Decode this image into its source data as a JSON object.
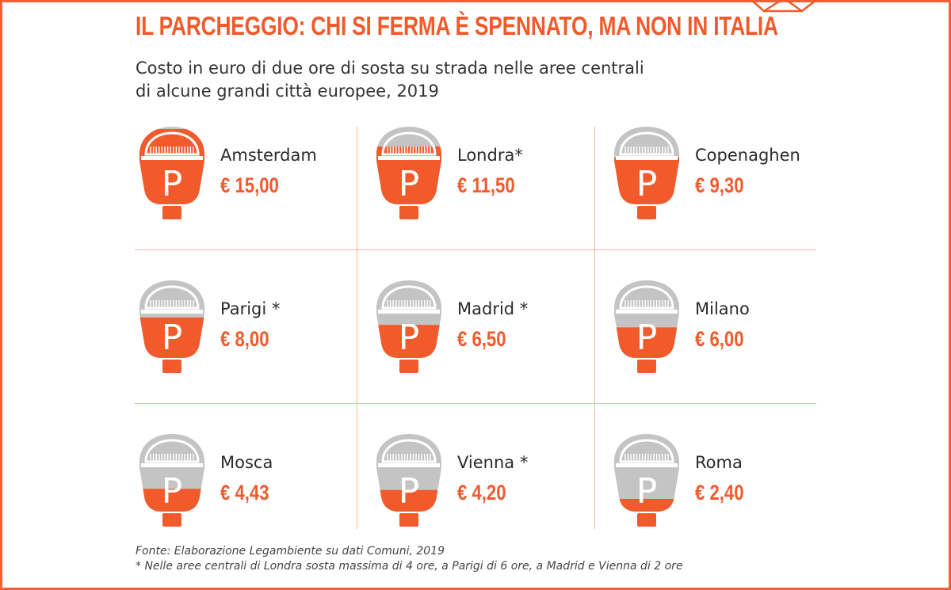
{
  "header": {
    "title": "Il parcheggio: chi si ferma è spennato, ma non in Italia",
    "subtitle_line1": "Costo in euro di due ore di sosta su strada nelle aree centrali",
    "subtitle_line2": "di alcune grandi città europee, 2019"
  },
  "colors": {
    "accent": "#f15a2b",
    "meter_gray": "#c4c4c4",
    "grid_line": "#f4b49c",
    "text": "#2b2b2b"
  },
  "icon": "parking-meter-icon",
  "meter_glyph": "P",
  "chart_data": {
    "type": "pictogram",
    "unit": "€",
    "categories": [
      "Amsterdam",
      "Londra*",
      "Copenaghen",
      "Parigi *",
      "Madrid *",
      "Milano",
      "Mosca",
      "Vienna *",
      "Roma"
    ],
    "values": [
      15.0,
      11.5,
      9.3,
      8.0,
      6.5,
      6.0,
      4.43,
      4.2,
      2.4
    ],
    "value_labels": [
      "€ 15,00",
      "€ 11,50",
      "€ 9,30",
      "€ 8,00",
      "€ 6,50",
      "€ 6,00",
      "€ 4,43",
      "€ 4,20",
      "€ 2,40"
    ],
    "max_value": 15.0
  },
  "notes": {
    "source": "Fonte: Elaborazione Legambiente su dati Comuni, 2019",
    "footnote": "* Nelle aree centrali di Londra sosta massima di 4 ore, a Parigi di 6 ore, a Madrid e Vienna di 2 ore"
  }
}
